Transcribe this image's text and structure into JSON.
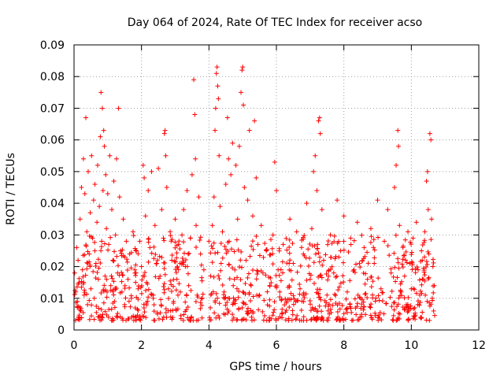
{
  "chart_data": {
    "type": "scatter",
    "title": "Day 064 of 2024, Rate Of TEC Index for receiver acso",
    "xlabel": "GPS time / hours",
    "ylabel": "ROTI / TECUs",
    "xlim": [
      0,
      12
    ],
    "ylim": [
      0,
      0.09
    ],
    "x_ticks": [
      0,
      2,
      4,
      6,
      8,
      10,
      12
    ],
    "x_tick_labels": [
      "0",
      "2",
      "4",
      "6",
      "8",
      "10",
      "12"
    ],
    "y_ticks": [
      0,
      0.01,
      0.02,
      0.03,
      0.04,
      0.05,
      0.06,
      0.07,
      0.08,
      0.09
    ],
    "y_tick_labels": [
      "0",
      "0.01",
      "0.02",
      "0.03",
      "0.04",
      "0.05",
      "0.06",
      "0.07",
      "0.08",
      "0.09"
    ],
    "grid": true,
    "marker": "plus",
    "color": "#ff0000",
    "series": [
      {
        "name": "ROTI",
        "points": [
          [
            0.02,
            0.018
          ],
          [
            0.05,
            0.012
          ],
          [
            0.08,
            0.026
          ],
          [
            0.1,
            0.009
          ],
          [
            0.12,
            0.022
          ],
          [
            0.15,
            0.015
          ],
          [
            0.18,
            0.035
          ],
          [
            0.2,
            0.006
          ],
          [
            0.22,
            0.045
          ],
          [
            0.25,
            0.019
          ],
          [
            0.28,
            0.054
          ],
          [
            0.3,
            0.011
          ],
          [
            0.32,
            0.043
          ],
          [
            0.35,
            0.067
          ],
          [
            0.38,
            0.031
          ],
          [
            0.4,
            0.008
          ],
          [
            0.42,
            0.05
          ],
          [
            0.45,
            0.024
          ],
          [
            0.48,
            0.037
          ],
          [
            0.5,
            0.013
          ],
          [
            0.52,
            0.055
          ],
          [
            0.55,
            0.029
          ],
          [
            0.58,
            0.041
          ],
          [
            0.6,
            0.01
          ],
          [
            0.62,
            0.046
          ],
          [
            0.65,
            0.021
          ],
          [
            0.68,
            0.034
          ],
          [
            0.7,
            0.052
          ],
          [
            0.72,
            0.016
          ],
          [
            0.75,
            0.039
          ],
          [
            0.78,
            0.061
          ],
          [
            0.8,
            0.075
          ],
          [
            0.82,
            0.028
          ],
          [
            0.84,
            0.07
          ],
          [
            0.86,
            0.044
          ],
          [
            0.88,
            0.063
          ],
          [
            0.9,
            0.058
          ],
          [
            0.92,
            0.017
          ],
          [
            0.94,
            0.049
          ],
          [
            0.96,
            0.032
          ],
          [
            0.98,
            0.012
          ],
          [
            1.0,
            0.043
          ],
          [
            1.03,
            0.027
          ],
          [
            1.06,
            0.055
          ],
          [
            1.09,
            0.014
          ],
          [
            1.12,
            0.038
          ],
          [
            1.15,
            0.022
          ],
          [
            1.18,
            0.047
          ],
          [
            1.2,
            0.009
          ],
          [
            1.23,
            0.03
          ],
          [
            1.26,
            0.054
          ],
          [
            1.29,
            0.018
          ],
          [
            1.32,
            0.07
          ],
          [
            1.35,
            0.042
          ],
          [
            1.38,
            0.025
          ],
          [
            1.42,
            0.012
          ],
          [
            1.46,
            0.035
          ],
          [
            1.5,
            0.008
          ],
          [
            1.55,
            0.028
          ],
          [
            1.6,
            0.016
          ],
          [
            1.65,
            0.024
          ],
          [
            1.7,
            0.01
          ],
          [
            1.75,
            0.031
          ],
          [
            1.8,
            0.019
          ],
          [
            1.85,
            0.025
          ],
          [
            1.9,
            0.013
          ],
          [
            1.95,
            0.028
          ],
          [
            2.0,
            0.02
          ],
          [
            2.05,
            0.052
          ],
          [
            2.08,
            0.048
          ],
          [
            2.12,
            0.036
          ],
          [
            2.15,
            0.015
          ],
          [
            2.2,
            0.044
          ],
          [
            2.25,
            0.026
          ],
          [
            2.3,
            0.05
          ],
          [
            2.35,
            0.011
          ],
          [
            2.4,
            0.033
          ],
          [
            2.45,
            0.021
          ],
          [
            2.5,
            0.051
          ],
          [
            2.55,
            0.017
          ],
          [
            2.6,
            0.038
          ],
          [
            2.65,
            0.029
          ],
          [
            2.68,
            0.062
          ],
          [
            2.7,
            0.063
          ],
          [
            2.72,
            0.055
          ],
          [
            2.75,
            0.045
          ],
          [
            2.8,
            0.013
          ],
          [
            2.85,
            0.031
          ],
          [
            2.9,
            0.022
          ],
          [
            2.95,
            0.009
          ],
          [
            3.0,
            0.035
          ],
          [
            3.05,
            0.016
          ],
          [
            3.1,
            0.027
          ],
          [
            3.15,
            0.012
          ],
          [
            3.2,
            0.03
          ],
          [
            3.25,
            0.038
          ],
          [
            3.3,
            0.02
          ],
          [
            3.35,
            0.044
          ],
          [
            3.4,
            0.014
          ],
          [
            3.45,
            0.029
          ],
          [
            3.5,
            0.049
          ],
          [
            3.55,
            0.079
          ],
          [
            3.58,
            0.068
          ],
          [
            3.6,
            0.054
          ],
          [
            3.62,
            0.033
          ],
          [
            3.65,
            0.011
          ],
          [
            3.7,
            0.042
          ],
          [
            3.75,
            0.024
          ],
          [
            3.8,
            0.01
          ],
          [
            3.85,
            0.019
          ],
          [
            4.0,
            0.028
          ],
          [
            4.05,
            0.017
          ],
          [
            4.1,
            0.033
          ],
          [
            4.15,
            0.042
          ],
          [
            4.18,
            0.063
          ],
          [
            4.2,
            0.07
          ],
          [
            4.22,
            0.081
          ],
          [
            4.24,
            0.083
          ],
          [
            4.26,
            0.077
          ],
          [
            4.28,
            0.073
          ],
          [
            4.3,
            0.055
          ],
          [
            4.33,
            0.039
          ],
          [
            4.36,
            0.021
          ],
          [
            4.4,
            0.031
          ],
          [
            4.45,
            0.012
          ],
          [
            4.5,
            0.046
          ],
          [
            4.55,
            0.067
          ],
          [
            4.58,
            0.054
          ],
          [
            4.6,
            0.028
          ],
          [
            4.65,
            0.049
          ],
          [
            4.7,
            0.059
          ],
          [
            4.75,
            0.016
          ],
          [
            4.8,
            0.052
          ],
          [
            4.85,
            0.035
          ],
          [
            4.9,
            0.058
          ],
          [
            4.95,
            0.075
          ],
          [
            4.98,
            0.082
          ],
          [
            5.0,
            0.083
          ],
          [
            5.02,
            0.071
          ],
          [
            5.05,
            0.045
          ],
          [
            5.1,
            0.022
          ],
          [
            5.15,
            0.041
          ],
          [
            5.2,
            0.063
          ],
          [
            5.25,
            0.014
          ],
          [
            5.3,
            0.036
          ],
          [
            5.35,
            0.066
          ],
          [
            5.4,
            0.048
          ],
          [
            5.45,
            0.027
          ],
          [
            5.5,
            0.011
          ],
          [
            5.55,
            0.033
          ],
          [
            5.6,
            0.018
          ],
          [
            5.7,
            0.025
          ],
          [
            5.8,
            0.014
          ],
          [
            5.9,
            0.03
          ],
          [
            5.95,
            0.053
          ],
          [
            6.0,
            0.044
          ],
          [
            6.05,
            0.019
          ],
          [
            6.1,
            0.012
          ],
          [
            6.2,
            0.027
          ],
          [
            6.3,
            0.009
          ],
          [
            6.4,
            0.035
          ],
          [
            6.5,
            0.021
          ],
          [
            6.6,
            0.031
          ],
          [
            6.7,
            0.013
          ],
          [
            6.8,
            0.024
          ],
          [
            6.9,
            0.04
          ],
          [
            7.0,
            0.016
          ],
          [
            7.05,
            0.032
          ],
          [
            7.1,
            0.05
          ],
          [
            7.15,
            0.055
          ],
          [
            7.2,
            0.044
          ],
          [
            7.25,
            0.066
          ],
          [
            7.28,
            0.067
          ],
          [
            7.3,
            0.062
          ],
          [
            7.35,
            0.038
          ],
          [
            7.4,
            0.022
          ],
          [
            7.5,
            0.011
          ],
          [
            7.6,
            0.03
          ],
          [
            7.7,
            0.018
          ],
          [
            7.8,
            0.041
          ],
          [
            7.9,
            0.025
          ],
          [
            8.0,
            0.036
          ],
          [
            8.1,
            0.012
          ],
          [
            8.2,
            0.029
          ],
          [
            8.3,
            0.019
          ],
          [
            8.4,
            0.034
          ],
          [
            8.5,
            0.01
          ],
          [
            8.6,
            0.026
          ],
          [
            8.7,
            0.016
          ],
          [
            8.8,
            0.032
          ],
          [
            8.9,
            0.021
          ],
          [
            9.0,
            0.041
          ],
          [
            9.1,
            0.013
          ],
          [
            9.2,
            0.028
          ],
          [
            9.3,
            0.038
          ],
          [
            9.4,
            0.018
          ],
          [
            9.5,
            0.045
          ],
          [
            9.55,
            0.052
          ],
          [
            9.6,
            0.063
          ],
          [
            9.62,
            0.058
          ],
          [
            9.65,
            0.033
          ],
          [
            9.7,
            0.012
          ],
          [
            9.75,
            0.026
          ],
          [
            9.8,
            0.017
          ],
          [
            9.85,
            0.008
          ],
          [
            9.9,
            0.031
          ],
          [
            9.95,
            0.021
          ],
          [
            10.0,
            0.013
          ],
          [
            10.05,
            0.029
          ],
          [
            10.1,
            0.007
          ],
          [
            10.15,
            0.034
          ],
          [
            10.2,
            0.019
          ],
          [
            10.25,
            0.011
          ],
          [
            10.3,
            0.025
          ],
          [
            10.35,
            0.016
          ],
          [
            10.4,
            0.031
          ],
          [
            10.45,
            0.047
          ],
          [
            10.48,
            0.05
          ],
          [
            10.5,
            0.038
          ],
          [
            10.52,
            0.024
          ],
          [
            10.55,
            0.062
          ],
          [
            10.58,
            0.06
          ],
          [
            10.6,
            0.035
          ],
          [
            10.62,
            0.01
          ],
          [
            10.64,
            0.02
          ],
          [
            10.66,
            0.006
          ],
          [
            10.68,
            0.014
          ]
        ],
        "dense_band": {
          "description": "dense cluster of ROTI values across the receiver tracking periods",
          "segments": [
            [
              0.0,
              3.85
            ],
            [
              4.0,
              10.7
            ]
          ],
          "y_range": [
            0.003,
            0.03
          ],
          "count": 900
        }
      }
    ]
  }
}
